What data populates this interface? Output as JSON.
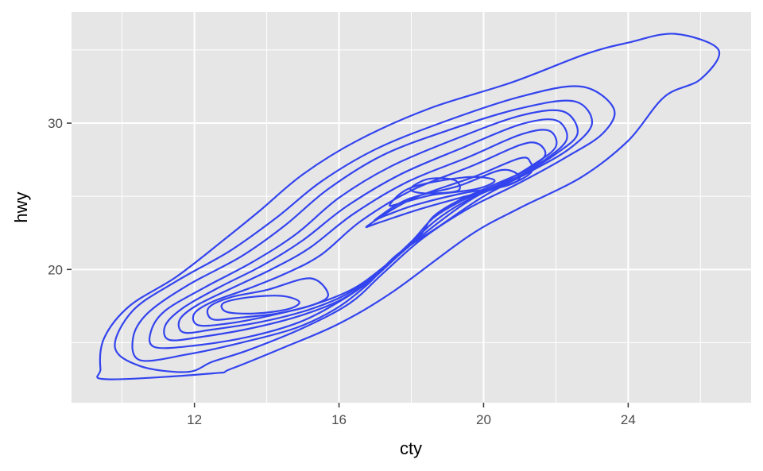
{
  "chart_data": {
    "type": "contour",
    "title": "",
    "xlabel": "cty",
    "ylabel": "hwy",
    "xlim": [
      8.6,
      27.4
    ],
    "ylim": [
      10.9,
      37.6
    ],
    "x_ticks": [
      12,
      16,
      20,
      24
    ],
    "x_minor_ticks": [
      10,
      14,
      18,
      22,
      26
    ],
    "y_ticks": [
      20,
      30
    ],
    "y_minor_ticks": [
      15,
      25,
      35
    ],
    "grid": true,
    "panel_background": "#e6e6e6",
    "grid_color": "#ffffff",
    "line_color": "#3344ee",
    "contours": [
      {
        "level": 1,
        "points": [
          [
            9.6,
            12.5
          ],
          [
            9.4,
            13.2
          ],
          [
            9.5,
            15.3
          ],
          [
            10.2,
            17.5
          ],
          [
            11.5,
            19.5
          ],
          [
            12.8,
            22
          ],
          [
            13.8,
            24
          ],
          [
            15,
            26.5
          ],
          [
            16.5,
            28.8
          ],
          [
            18.5,
            31
          ],
          [
            20.8,
            32.8
          ],
          [
            22.8,
            34.7
          ],
          [
            24,
            35.5
          ],
          [
            25.3,
            36.1
          ],
          [
            26.5,
            35
          ],
          [
            26,
            33
          ],
          [
            25,
            31.8
          ],
          [
            24,
            28.8
          ],
          [
            22.7,
            26.3
          ],
          [
            21,
            24.2
          ],
          [
            19.6,
            22.3
          ],
          [
            17.5,
            18.5
          ],
          [
            16,
            16.3
          ],
          [
            14.5,
            14.7
          ],
          [
            13,
            13.2
          ],
          [
            12.5,
            12.9
          ]
        ]
      },
      {
        "level": 2,
        "points": [
          [
            11.8,
            13
          ],
          [
            10.5,
            13.4
          ],
          [
            9.8,
            14.7
          ],
          [
            10.3,
            17.2
          ],
          [
            11.5,
            19.2
          ],
          [
            13,
            21.3
          ],
          [
            14.3,
            23.6
          ],
          [
            15.5,
            26
          ],
          [
            17,
            28.2
          ],
          [
            18.8,
            30
          ],
          [
            21,
            31.8
          ],
          [
            22.7,
            32.5
          ],
          [
            23.6,
            31
          ],
          [
            23.3,
            29.3
          ],
          [
            22.3,
            27.7
          ],
          [
            20.9,
            25.8
          ],
          [
            19.6,
            24.2
          ],
          [
            18.3,
            22.1
          ],
          [
            17.2,
            19.7
          ],
          [
            16.3,
            17.7
          ],
          [
            15,
            16
          ],
          [
            13.5,
            14.5
          ],
          [
            12.5,
            13.7
          ]
        ]
      },
      {
        "level": 3,
        "points": [
          [
            10.5,
            13.8
          ],
          [
            10.3,
            15.3
          ],
          [
            10.7,
            17
          ],
          [
            11.8,
            18.9
          ],
          [
            13.3,
            20.9
          ],
          [
            14.5,
            23
          ],
          [
            15.7,
            25.5
          ],
          [
            17.2,
            27.8
          ],
          [
            19,
            29.5
          ],
          [
            21,
            31
          ],
          [
            22.5,
            31.5
          ],
          [
            23,
            30
          ],
          [
            22.4,
            28.3
          ],
          [
            21.3,
            26.7
          ],
          [
            20,
            25
          ],
          [
            18.8,
            23
          ],
          [
            17.6,
            21
          ],
          [
            16.8,
            19
          ],
          [
            15.9,
            17.3
          ],
          [
            14.8,
            16
          ],
          [
            13.3,
            15
          ],
          [
            11.8,
            14.2
          ]
        ]
      },
      {
        "level": 4,
        "points": [
          [
            10.9,
            14.7
          ],
          [
            10.8,
            15.8
          ],
          [
            11.2,
            17.2
          ],
          [
            12.3,
            18.8
          ],
          [
            13.6,
            20.5
          ],
          [
            14.8,
            22.4
          ],
          [
            16,
            24.9
          ],
          [
            17.4,
            27
          ],
          [
            19.2,
            28.9
          ],
          [
            21,
            30.5
          ],
          [
            22.2,
            30.8
          ],
          [
            22.6,
            29.3
          ],
          [
            22,
            27.9
          ],
          [
            21,
            26.4
          ],
          [
            19.8,
            25
          ],
          [
            18.8,
            23.3
          ],
          [
            17.8,
            21.3
          ],
          [
            16.9,
            19.3
          ],
          [
            16,
            17.8
          ],
          [
            14.9,
            16.4
          ],
          [
            13.5,
            15.4
          ],
          [
            12,
            14.8
          ]
        ]
      },
      {
        "level": 5,
        "points": [
          [
            11.3,
            15.2
          ],
          [
            11.2,
            16.2
          ],
          [
            11.7,
            17.4
          ],
          [
            12.7,
            18.8
          ],
          [
            13.9,
            20.3
          ],
          [
            15,
            22
          ],
          [
            16.2,
            24.3
          ],
          [
            17.7,
            26.5
          ],
          [
            19.4,
            28.3
          ],
          [
            21,
            29.9
          ],
          [
            22,
            30.2
          ],
          [
            22.3,
            28.9
          ],
          [
            21.7,
            27.5
          ],
          [
            20.8,
            26.1
          ],
          [
            19.6,
            24.8
          ],
          [
            18.7,
            23.4
          ],
          [
            17.9,
            21.6
          ],
          [
            17,
            19.6
          ],
          [
            16.1,
            18
          ],
          [
            15,
            16.9
          ],
          [
            13.6,
            16
          ],
          [
            12.2,
            15.4
          ]
        ]
      },
      {
        "level": 6,
        "points": [
          [
            11.7,
            15.7
          ],
          [
            11.6,
            16.6
          ],
          [
            12.1,
            17.6
          ],
          [
            13.1,
            18.8
          ],
          [
            14.2,
            20.1
          ],
          [
            15.2,
            21.5
          ],
          [
            16.4,
            23.8
          ],
          [
            17.9,
            26
          ],
          [
            19.6,
            27.7
          ],
          [
            21,
            29.2
          ],
          [
            21.8,
            29.5
          ],
          [
            22,
            28.4
          ],
          [
            21.4,
            27.2
          ],
          [
            20.5,
            25.9
          ],
          [
            19.4,
            24.7
          ],
          [
            18.6,
            23.5
          ],
          [
            18,
            21.9
          ],
          [
            17.1,
            19.9
          ],
          [
            16.2,
            18.3
          ],
          [
            15.1,
            17.2
          ],
          [
            13.8,
            16.4
          ],
          [
            12.5,
            15.9
          ]
        ]
      },
      {
        "level": 7,
        "points": [
          [
            12.1,
            16.2
          ],
          [
            12,
            17
          ],
          [
            12.5,
            17.8
          ],
          [
            13.5,
            18.7
          ],
          [
            14.5,
            19.7
          ],
          [
            15.5,
            21
          ],
          [
            16.6,
            23.3
          ],
          [
            18,
            25.4
          ],
          [
            19.7,
            27.1
          ],
          [
            21,
            28.5
          ],
          [
            21.5,
            28.6
          ],
          [
            21.7,
            27.8
          ],
          [
            21.2,
            26.8
          ],
          [
            20.3,
            25.8
          ],
          [
            19.3,
            24.7
          ],
          [
            18.6,
            23.6
          ],
          [
            18.2,
            22.2
          ],
          [
            17.3,
            20.3
          ],
          [
            16.4,
            18.7
          ],
          [
            15.3,
            17.6
          ],
          [
            14,
            16.8
          ],
          [
            12.9,
            16.3
          ]
        ]
      },
      {
        "level": 8,
        "points": [
          [
            12.5,
            16.6
          ],
          [
            12.4,
            17.4
          ],
          [
            13,
            18.1
          ],
          [
            14,
            18.6
          ],
          [
            15.2,
            19.4
          ],
          [
            15.7,
            18.3
          ],
          [
            15.3,
            17.6
          ],
          [
            14.3,
            17
          ],
          [
            13.2,
            16.7
          ]
        ]
      },
      {
        "level": 8,
        "points": [
          [
            16.8,
            23
          ],
          [
            18,
            24.8
          ],
          [
            19.7,
            26.3
          ],
          [
            21,
            27.6
          ],
          [
            21.3,
            27.3
          ],
          [
            21.3,
            26.6
          ],
          [
            20.7,
            25.8
          ],
          [
            19.5,
            25
          ],
          [
            18.2,
            24.1
          ],
          [
            17.1,
            23.2
          ]
        ]
      },
      {
        "level": 9,
        "points": [
          [
            12.9,
            17.1
          ],
          [
            12.8,
            17.7
          ],
          [
            13.5,
            18.1
          ],
          [
            14.4,
            18.2
          ],
          [
            14.9,
            17.8
          ],
          [
            14.6,
            17.3
          ],
          [
            13.7,
            17
          ]
        ]
      },
      {
        "level": 9,
        "points": [
          [
            17,
            23.4
          ],
          [
            17.9,
            24.8
          ],
          [
            19.3,
            25.7
          ],
          [
            20.5,
            26.8
          ],
          [
            21,
            26.3
          ],
          [
            20.6,
            25.7
          ],
          [
            19.4,
            25.2
          ],
          [
            18.1,
            24.4
          ],
          [
            17.3,
            23.7
          ]
        ]
      },
      {
        "level": 10,
        "points": [
          [
            17.4,
            24.4
          ],
          [
            18,
            25.6
          ],
          [
            19.5,
            26.3
          ],
          [
            20.3,
            26.1
          ],
          [
            19.8,
            25.5
          ],
          [
            18.6,
            25.1
          ],
          [
            17.8,
            24.6
          ]
        ]
      },
      {
        "level": 11,
        "points": [
          [
            18,
            25.6
          ],
          [
            18.5,
            26.2
          ],
          [
            19.2,
            26.1
          ],
          [
            19.3,
            25.4
          ],
          [
            18.6,
            25.2
          ],
          [
            18.1,
            25.3
          ]
        ]
      }
    ]
  }
}
